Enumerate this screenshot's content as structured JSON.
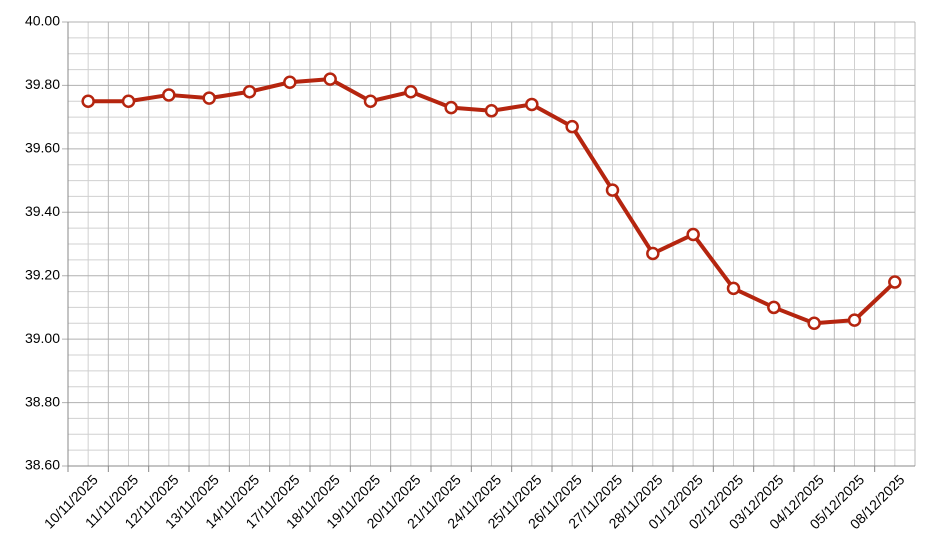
{
  "chart_data": {
    "type": "line",
    "categories": [
      "10/11/2025",
      "11/11/2025",
      "12/11/2025",
      "13/11/2025",
      "14/11/2025",
      "17/11/2025",
      "18/11/2025",
      "19/11/2025",
      "20/11/2025",
      "21/11/2025",
      "24/11/2025",
      "25/11/2025",
      "26/11/2025",
      "27/11/2025",
      "28/11/2025",
      "01/12/2025",
      "02/12/2025",
      "03/12/2025",
      "04/12/2025",
      "05/12/2025",
      "08/12/2025"
    ],
    "values": [
      39.75,
      39.75,
      39.77,
      39.76,
      39.78,
      39.81,
      39.82,
      39.75,
      39.78,
      39.73,
      39.72,
      39.74,
      39.67,
      39.47,
      39.27,
      39.33,
      39.16,
      39.1,
      39.05,
      39.06,
      39.18
    ],
    "color": "#b5250f",
    "ylim": [
      38.6,
      40.0
    ],
    "yticks": [
      {
        "value": 38.6,
        "label": "38.60"
      },
      {
        "value": 38.8,
        "label": "38.80"
      },
      {
        "value": 39.0,
        "label": "39.00"
      },
      {
        "value": 39.2,
        "label": "39.20"
      },
      {
        "value": 39.4,
        "label": "39.40"
      },
      {
        "value": 39.6,
        "label": "39.60"
      },
      {
        "value": 39.8,
        "label": "39.80"
      },
      {
        "value": 40.0,
        "label": "40.00"
      }
    ],
    "grid": true
  }
}
